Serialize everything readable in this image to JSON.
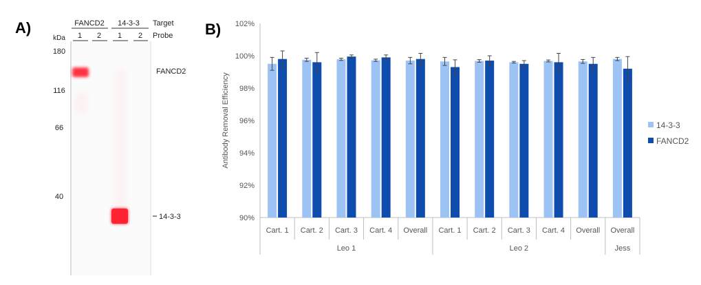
{
  "panelA": {
    "label": "A)",
    "kda_label": "kDa",
    "target_header": "Target",
    "probe_header": "Probe",
    "targets": [
      "FANCD2",
      "14-3-3"
    ],
    "probes": [
      "1",
      "2",
      "1",
      "2"
    ],
    "mw_markers": [
      "180",
      "116",
      "66",
      "40"
    ],
    "band_labels": [
      "FANCD2",
      "14-3-3"
    ],
    "band_color": "#ff1a2e"
  },
  "panelB": {
    "label": "B)",
    "chart_data": {
      "type": "bar",
      "ylabel": "Antibody Removal Efficiency",
      "ylim": [
        90,
        102
      ],
      "ytick_labels": [
        "90%",
        "92%",
        "94%",
        "96%",
        "98%",
        "100%",
        "102%"
      ],
      "categories": [
        "Cart. 1",
        "Cart. 2",
        "Cart. 3",
        "Cart. 4",
        "Overall",
        "Cart. 1",
        "Cart. 2",
        "Cart. 3",
        "Cart. 4",
        "Overall",
        "Overall"
      ],
      "groups": [
        "Leo 1",
        "Leo 2",
        "Jess"
      ],
      "series": [
        {
          "name": "14-3-3",
          "color": "#9dc3f5",
          "values": [
            99.5,
            99.75,
            99.78,
            99.72,
            99.7,
            99.65,
            99.68,
            99.6,
            99.68,
            99.65,
            99.8
          ],
          "errors": [
            0.4,
            0.1,
            0.07,
            0.07,
            0.2,
            0.25,
            0.08,
            0.05,
            0.06,
            0.12,
            0.1
          ]
        },
        {
          "name": "FANCD2",
          "color": "#0e4dae",
          "values": [
            99.8,
            99.6,
            99.95,
            99.9,
            99.8,
            99.3,
            99.7,
            99.5,
            99.6,
            99.5,
            99.2
          ],
          "errors": [
            0.5,
            0.6,
            0.1,
            0.15,
            0.35,
            0.45,
            0.3,
            0.2,
            0.55,
            0.4,
            0.75
          ]
        }
      ],
      "legend": "right",
      "grid": false
    }
  }
}
